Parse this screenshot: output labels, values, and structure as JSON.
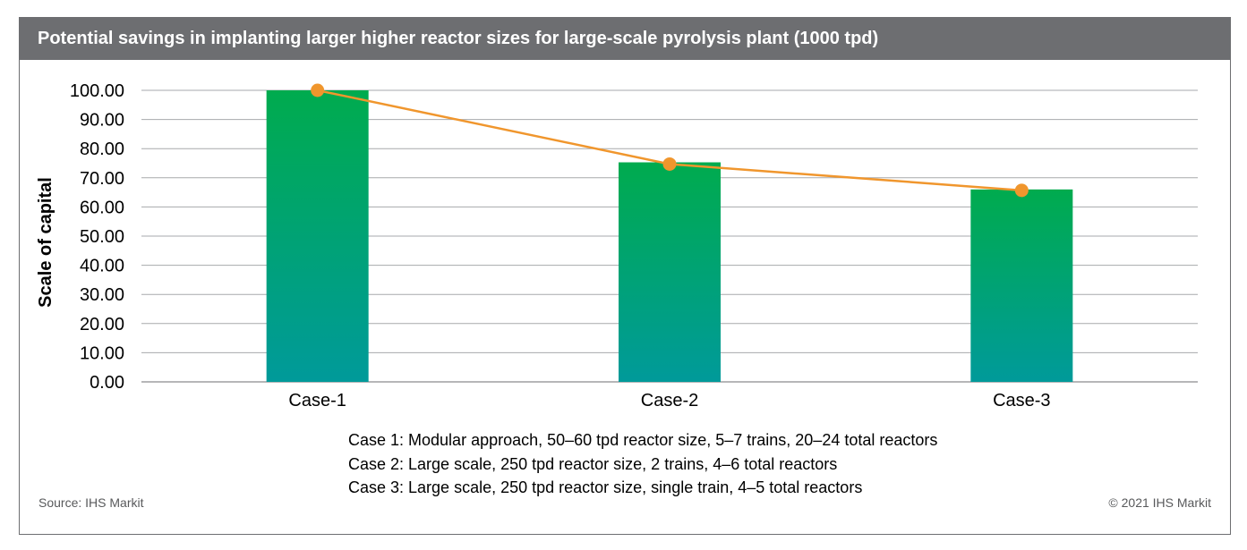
{
  "header": {
    "title": "Potential savings in implanting larger higher reactor sizes for large-scale pyrolysis plant (1000 tpd)"
  },
  "chart_data": {
    "type": "bar",
    "title": "Potential savings in implanting larger higher reactor sizes for large-scale pyrolysis plant (1000 tpd)",
    "xlabel": "",
    "ylabel": "Scale of capital",
    "categories": [
      "Case-1",
      "Case-2",
      "Case-3"
    ],
    "series": [
      {
        "kind": "bar",
        "values": [
          100.0,
          75.3,
          66.0
        ]
      },
      {
        "kind": "line",
        "values": [
          100.0,
          74.7,
          65.7
        ]
      }
    ],
    "ylim": [
      0,
      100
    ],
    "yticks": [
      "0.00",
      "10.00",
      "20.00",
      "30.00",
      "40.00",
      "50.00",
      "60.00",
      "70.00",
      "80.00",
      "90.00",
      "100.00"
    ],
    "grid": true,
    "colors": {
      "bar_top": "#00ab4e",
      "bar_bottom": "#009a9a",
      "line": "#f0962d"
    }
  },
  "notes": [
    "Case 1: Modular approach, 50–60 tpd reactor size, 5–7 trains, 20–24 total reactors",
    "Case 2: Large scale, 250 tpd reactor size, 2 trains, 4–6 total reactors",
    "Case 3: Large scale, 250 tpd reactor size, single train, 4–5 total reactors"
  ],
  "footer": {
    "source": "Source:  IHS Markit",
    "copyright": "© 2021 IHS Markit"
  }
}
